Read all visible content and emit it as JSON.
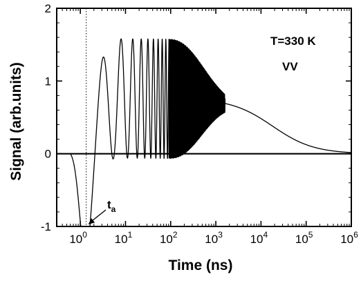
{
  "chart_data": {
    "type": "line",
    "title": "",
    "xlabel": "Time  (ns)",
    "ylabel": "Signal (arb.units)",
    "x_scale": "log",
    "xlim": [
      0.3,
      1000000
    ],
    "ylim": [
      -1,
      2
    ],
    "x_ticks": [
      {
        "value": 1,
        "base": "10",
        "exp": "0"
      },
      {
        "value": 10,
        "base": "10",
        "exp": "1"
      },
      {
        "value": 100,
        "base": "10",
        "exp": "2"
      },
      {
        "value": 1000,
        "base": "10",
        "exp": "3"
      },
      {
        "value": 10000,
        "base": "10",
        "exp": "4"
      },
      {
        "value": 100000,
        "base": "10",
        "exp": "5"
      },
      {
        "value": 1000000,
        "base": "10",
        "exp": "6"
      }
    ],
    "y_ticks": [
      {
        "value": -1,
        "label": "-1"
      },
      {
        "value": 0,
        "label": "0"
      },
      {
        "value": 1,
        "label": "1"
      },
      {
        "value": 2,
        "label": "2"
      }
    ],
    "baseline_y": 0,
    "grid": false,
    "annotations": {
      "temperature": "T=330 K",
      "polarization": "VV",
      "marker_base": "t",
      "marker_sub": "a",
      "marker_x": 1.35
    },
    "series": [
      {
        "name": "",
        "color": "#000000",
        "description_points": [
          {
            "x": 0.3,
            "y": 0.0
          },
          {
            "x": 0.5,
            "y": -0.05
          },
          {
            "x": 0.8,
            "y": -0.35
          },
          {
            "x": 1.3,
            "y": -0.68
          },
          {
            "x": 2.2,
            "y": 0.2
          },
          {
            "x": 5.0,
            "y": 1.6
          },
          {
            "x": 100,
            "y": 1.57
          },
          {
            "x": 1000,
            "y": 0.9
          },
          {
            "x": 1700,
            "y": 0.73
          },
          {
            "x": 10000,
            "y": 0.5
          },
          {
            "x": 100000,
            "y": 0.05
          },
          {
            "x": 300000,
            "y": 0.0
          },
          {
            "x": 1000000,
            "y": 0.0
          }
        ]
      }
    ]
  }
}
